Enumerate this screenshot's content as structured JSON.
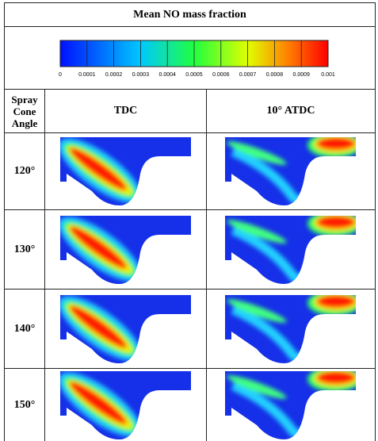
{
  "title": "Mean NO mass fraction",
  "colorbar": {
    "ticks": [
      "0",
      "0.0001",
      "0.0002",
      "0.0003",
      "0.0004",
      "0.0005",
      "0.0006",
      "0.0007",
      "0.0008",
      "0.0009",
      "0.001"
    ]
  },
  "table": {
    "header": [
      "Spray Cone Angle",
      "TDC",
      "10° ATDC"
    ],
    "rows": [
      [
        "120°"
      ],
      [
        "130°"
      ],
      [
        "140°"
      ],
      [
        "150°"
      ]
    ]
  }
}
